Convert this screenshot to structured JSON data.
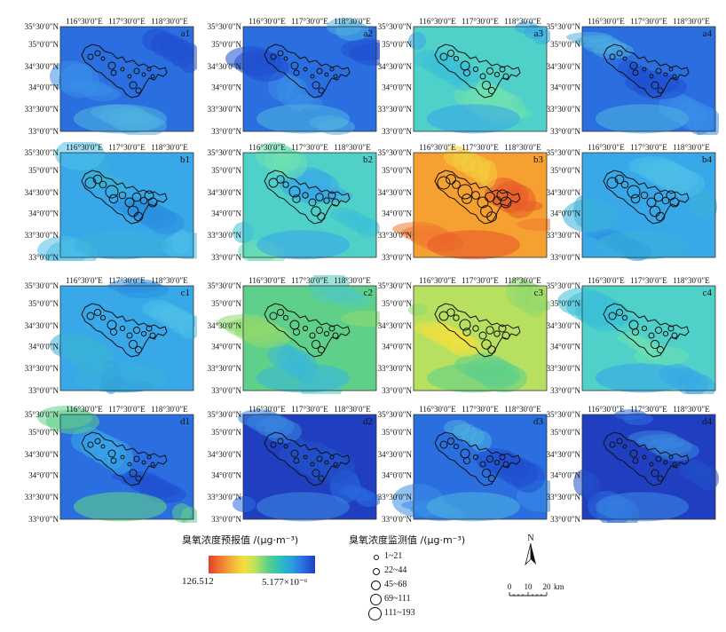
{
  "lon_ticks": [
    "116°30′0″E",
    "117°30′0″E",
    "118°30′0″E"
  ],
  "lat_ticks": [
    "35°30′0″N",
    "35°0′0″N",
    "34°30′0″N",
    "34°0′0″N",
    "33°30′0″N",
    "33°0′0″N"
  ],
  "panels": [
    {
      "id": "a1",
      "label": "a1",
      "palette": "blue"
    },
    {
      "id": "a2",
      "label": "a2",
      "palette": "blue"
    },
    {
      "id": "a3",
      "label": "a3",
      "palette": "teal"
    },
    {
      "id": "a4",
      "label": "a4",
      "palette": "blue"
    },
    {
      "id": "b1",
      "label": "b1",
      "palette": "lightblue"
    },
    {
      "id": "b2",
      "label": "b2",
      "palette": "teal"
    },
    {
      "id": "b3",
      "label": "b3",
      "palette": "orange"
    },
    {
      "id": "b4",
      "label": "b4",
      "palette": "lightblue"
    },
    {
      "id": "c1",
      "label": "c1",
      "palette": "lightblue"
    },
    {
      "id": "c2",
      "label": "c2",
      "palette": "green"
    },
    {
      "id": "c3",
      "label": "c3",
      "palette": "yellowgreen"
    },
    {
      "id": "c4",
      "label": "c4",
      "palette": "teal"
    },
    {
      "id": "d1",
      "label": "d1",
      "palette": "bluemix"
    },
    {
      "id": "d2",
      "label": "d2",
      "palette": "darkblue"
    },
    {
      "id": "d3",
      "label": "d3",
      "palette": "blue"
    },
    {
      "id": "d4",
      "label": "d4",
      "palette": "darkblue"
    }
  ],
  "legend_scale": {
    "title": "臭氧浓度预报值 /(μg·m⁻³)",
    "max_label": "126.512",
    "min_label": "5.177×10⁻⁶"
  },
  "legend_obs": {
    "title": "臭氧浓度监测值 /(μg·m⁻³)",
    "classes": [
      "1~21",
      "22~44",
      "45~68",
      "69~111",
      "111~193"
    ]
  },
  "north_label": "N",
  "scale_bar": {
    "ticks": [
      "0",
      "10",
      "20"
    ],
    "unit": "km"
  },
  "colors": {
    "orange": "#f08a35",
    "red": "#e0402a",
    "yellow": "#f2e040",
    "green": "#8fd870",
    "teal": "#4fd0c8",
    "lightblue": "#38a8e8",
    "blue": "#2a6ee0",
    "darkblue": "#1f3fc0"
  }
}
